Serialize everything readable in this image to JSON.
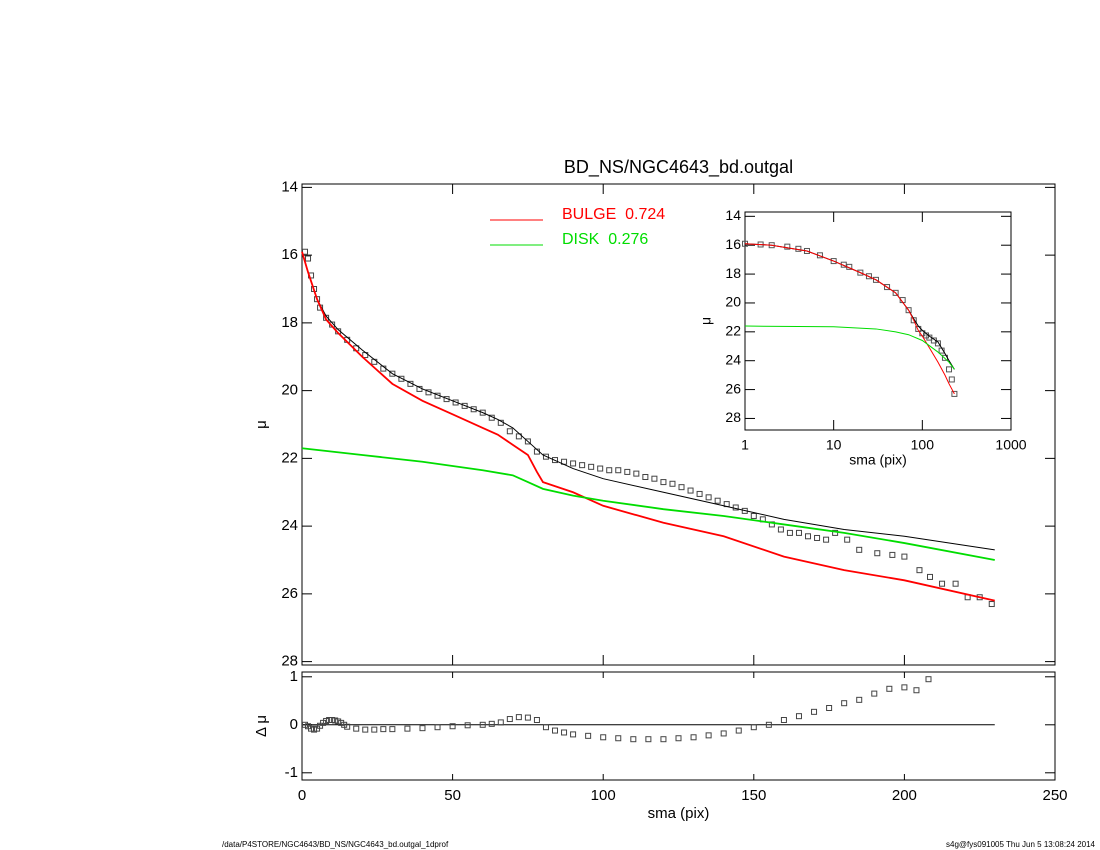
{
  "footer": {
    "left": "/data/P4STORE/NGC4643/BD_NS/NGC4643_bd.outgal_1dprof",
    "right": "s4g@fys091005  Thu Jun  5 13:08:24 2014"
  },
  "chart_data": [
    {
      "type": "line",
      "title": "BD_NS/NGC4643_bd.outgal",
      "ylabel": "μ",
      "xlim": [
        0,
        250
      ],
      "ylim": [
        28.1,
        13.9
      ],
      "xticks": [
        0,
        50,
        100,
        150,
        200,
        250
      ],
      "yticks": [
        14,
        16,
        18,
        20,
        22,
        24,
        26,
        28
      ],
      "show_xticklabels": false,
      "legend": "upper center",
      "series": [
        {
          "marker": "square",
          "color": "#444444",
          "x": [
            1,
            2,
            3,
            4,
            5,
            6,
            8,
            10,
            12,
            15,
            18,
            21,
            24,
            27,
            30,
            33,
            36,
            39,
            42,
            45,
            48,
            51,
            54,
            57,
            60,
            63,
            66,
            69,
            72,
            75,
            78,
            81,
            84,
            87,
            90,
            93,
            96,
            99,
            102,
            105,
            108,
            111,
            114,
            117,
            120,
            123,
            126,
            129,
            132,
            135,
            138,
            141,
            144,
            147,
            150,
            153,
            156,
            159,
            162,
            165,
            168,
            171,
            174,
            177,
            181,
            185,
            191,
            196,
            200,
            205,
            208.5,
            212.5,
            217,
            221,
            225,
            229
          ],
          "values": [
            15.9,
            16.1,
            16.6,
            17.0,
            17.3,
            17.55,
            17.85,
            18.05,
            18.25,
            18.5,
            18.75,
            18.95,
            19.15,
            19.35,
            19.5,
            19.65,
            19.8,
            19.95,
            20.05,
            20.15,
            20.25,
            20.35,
            20.45,
            20.55,
            20.65,
            20.8,
            20.95,
            21.2,
            21.35,
            21.5,
            21.8,
            21.95,
            22.05,
            22.1,
            22.15,
            22.2,
            22.25,
            22.3,
            22.35,
            22.35,
            22.4,
            22.45,
            22.55,
            22.6,
            22.7,
            22.75,
            22.85,
            22.95,
            23.05,
            23.15,
            23.25,
            23.35,
            23.45,
            23.55,
            23.7,
            23.8,
            23.95,
            24.1,
            24.2,
            24.2,
            24.3,
            24.35,
            24.4,
            24.2,
            24.4,
            24.7,
            24.8,
            24.85,
            24.9,
            25.3,
            25.5,
            25.7,
            25.7,
            26.1,
            26.1,
            26.3
          ]
        },
        {
          "color": "#000000",
          "x": [
            0,
            2,
            5,
            8,
            12,
            20,
            30,
            40,
            50,
            60,
            65,
            70,
            75,
            80,
            90,
            100,
            120,
            140,
            160,
            180,
            200,
            230
          ],
          "values": [
            15.9,
            16.5,
            17.3,
            17.8,
            18.2,
            18.8,
            19.5,
            19.95,
            20.3,
            20.65,
            20.85,
            21.1,
            21.5,
            21.9,
            22.3,
            22.6,
            23.0,
            23.4,
            23.8,
            24.1,
            24.3,
            24.7
          ]
        },
        {
          "name": "BULGE  0.724",
          "color": "#ff0000",
          "x": [
            0,
            2,
            5,
            8,
            12,
            20,
            30,
            40,
            50,
            60,
            65,
            70,
            75,
            78,
            80,
            90,
            100,
            120,
            140,
            160,
            180,
            200,
            230
          ],
          "values": [
            15.9,
            16.5,
            17.3,
            17.9,
            18.3,
            19.0,
            19.8,
            20.3,
            20.7,
            21.1,
            21.3,
            21.6,
            21.9,
            22.4,
            22.7,
            23.0,
            23.4,
            23.9,
            24.3,
            24.9,
            25.3,
            25.6,
            26.2
          ]
        },
        {
          "name": "DISK  0.276",
          "color": "#00dd00",
          "x": [
            0,
            20,
            40,
            60,
            70,
            75,
            80,
            90,
            100,
            120,
            140,
            160,
            180,
            200,
            230
          ],
          "values": [
            21.7,
            21.9,
            22.1,
            22.35,
            22.5,
            22.7,
            22.9,
            23.1,
            23.25,
            23.5,
            23.7,
            23.95,
            24.2,
            24.5,
            25.0
          ]
        }
      ]
    },
    {
      "type": "line",
      "xlabel": "sma (pix)",
      "ylabel": "Δ μ",
      "xlim": [
        0,
        250
      ],
      "ylim": [
        -1.15,
        1.1
      ],
      "xticks": [
        0,
        50,
        100,
        150,
        200,
        250
      ],
      "yticks": [
        -1,
        0,
        1
      ],
      "series": [
        {
          "color": "#000000",
          "x": [
            0,
            230
          ],
          "values": [
            0,
            0
          ]
        },
        {
          "marker": "square",
          "color": "#444444",
          "x": [
            1,
            2,
            3,
            4,
            5,
            6,
            7,
            8,
            9,
            10,
            11,
            12,
            13,
            14,
            15,
            18,
            21,
            24,
            27,
            30,
            35,
            40,
            45,
            50,
            55,
            60,
            63,
            66,
            69,
            72,
            75,
            78,
            81,
            84,
            87,
            90,
            95,
            100,
            105,
            110,
            115,
            120,
            125,
            130,
            135,
            140,
            145,
            150,
            155,
            160,
            165,
            170,
            175,
            180,
            185,
            190,
            195,
            200,
            204,
            208
          ],
          "values": [
            0,
            -0.03,
            -0.08,
            -0.1,
            -0.08,
            -0.02,
            0.04,
            0.08,
            0.1,
            0.1,
            0.09,
            0.07,
            0.04,
            0.0,
            -0.04,
            -0.08,
            -0.1,
            -0.1,
            -0.09,
            -0.09,
            -0.08,
            -0.07,
            -0.05,
            -0.03,
            -0.01,
            0.0,
            0.02,
            0.05,
            0.12,
            0.16,
            0.15,
            0.1,
            -0.05,
            -0.12,
            -0.16,
            -0.2,
            -0.23,
            -0.26,
            -0.28,
            -0.3,
            -0.3,
            -0.3,
            -0.28,
            -0.26,
            -0.22,
            -0.18,
            -0.12,
            -0.05,
            0.0,
            0.1,
            0.18,
            0.27,
            0.35,
            0.45,
            0.52,
            0.65,
            0.75,
            0.78,
            0.72,
            0.95
          ]
        }
      ]
    },
    {
      "type": "line",
      "xlabel": "sma (pix)",
      "ylabel": "μ",
      "xscale": "log",
      "xlim": [
        1,
        1000
      ],
      "ylim": [
        28.8,
        13.7
      ],
      "xticks": [
        1,
        10,
        100,
        1000
      ],
      "yticks": [
        14,
        16,
        18,
        20,
        22,
        24,
        26,
        28
      ],
      "series": [
        {
          "marker": "square",
          "color": "#555555",
          "x": [
            1,
            1.5,
            2,
            3,
            4,
            5,
            7,
            10,
            13,
            15,
            20,
            25,
            30,
            40,
            50,
            60,
            70,
            80,
            90,
            100,
            110,
            120,
            135,
            150,
            165,
            180,
            200,
            215,
            230
          ],
          "values": [
            15.9,
            15.95,
            16.0,
            16.1,
            16.25,
            16.4,
            16.7,
            17.1,
            17.35,
            17.5,
            17.9,
            18.15,
            18.4,
            18.9,
            19.3,
            19.8,
            20.5,
            21.2,
            21.8,
            22.1,
            22.25,
            22.4,
            22.6,
            22.8,
            23.3,
            23.8,
            24.6,
            25.3,
            26.3
          ]
        },
        {
          "color": "#000000",
          "x": [
            1,
            2,
            5,
            10,
            20,
            30,
            50,
            70,
            80,
            90,
            100,
            120,
            150,
            180,
            200,
            230
          ],
          "values": [
            15.9,
            16.0,
            16.4,
            17.1,
            17.9,
            18.4,
            19.3,
            20.5,
            21.1,
            21.6,
            21.9,
            22.3,
            22.7,
            23.5,
            24.0,
            24.6
          ]
        },
        {
          "color": "#ff0000",
          "x": [
            1,
            2,
            5,
            10,
            20,
            30,
            50,
            70,
            80,
            90,
            100,
            120,
            150,
            180,
            200,
            230
          ],
          "values": [
            15.9,
            16.0,
            16.4,
            17.1,
            17.9,
            18.4,
            19.3,
            20.5,
            21.2,
            21.9,
            22.3,
            23.1,
            24.1,
            25.0,
            25.6,
            26.3
          ]
        },
        {
          "color": "#00dd00",
          "x": [
            1,
            10,
            30,
            50,
            70,
            100,
            150,
            200,
            230
          ],
          "values": [
            21.6,
            21.65,
            21.8,
            22.0,
            22.2,
            22.6,
            23.4,
            24.1,
            24.6
          ]
        }
      ]
    }
  ]
}
